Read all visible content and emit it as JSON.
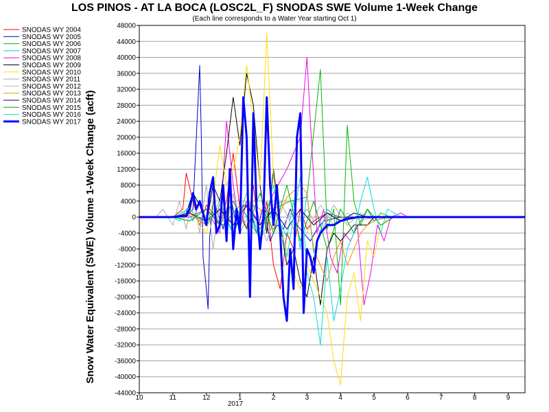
{
  "chart_data": {
    "type": "line",
    "title": "LOS PINOS - AT LA BOCA (LOSC2L_F) SNODAS SWE Volume 1-Week Change",
    "subtitle": "(Each line corresponds to a Water Year starting Oct 1)",
    "ylabel": "Snow Water Equivalent (SWE) Volume 1-Week Change (acft)",
    "xlabel": "",
    "ylim": [
      -44000,
      48000
    ],
    "yticks": [
      48000,
      44000,
      40000,
      36000,
      32000,
      28000,
      24000,
      20000,
      16000,
      12000,
      8000,
      4000,
      0,
      -4000,
      -8000,
      -12000,
      -16000,
      -20000,
      -24000,
      -28000,
      -32000,
      -36000,
      -40000,
      -44000
    ],
    "ytick_labels": [
      "48000",
      "44000",
      "40000",
      "36000",
      "32000",
      "28000",
      "24000",
      "20000",
      "16000",
      "12000",
      "8000",
      "4000",
      "0",
      "-4000",
      "-8000",
      "-12000",
      "-16000",
      "-20000",
      "-24000",
      "-28000",
      "-32000",
      "-36000",
      "-40000",
      "-44000"
    ],
    "xlim": [
      0,
      11.5
    ],
    "xticks": [
      0,
      1,
      2,
      3,
      4,
      5,
      6,
      7,
      8,
      9,
      10,
      11
    ],
    "xtick_labels": [
      "10",
      "11",
      "12",
      "1",
      "2",
      "3",
      "4",
      "5",
      "6",
      "7",
      "8",
      "9"
    ],
    "x_year_label": "2017",
    "x_units": "months since Oct 1",
    "grid": true,
    "legend_position": "top-left outside",
    "series": [
      {
        "name": "SNODAS WY 2004",
        "color": "#ff0000",
        "width": 1,
        "x": [
          0,
          1.0,
          1.3,
          1.4,
          1.6,
          1.8,
          2.0,
          2.2,
          2.4,
          2.6,
          2.8,
          3.0,
          3.2,
          3.4,
          3.6,
          3.8,
          4.0,
          4.2,
          4.4,
          4.6,
          4.8,
          5.0,
          5.2,
          5.6,
          6.0,
          6.4,
          7.0,
          8.0,
          9.0,
          11.5
        ],
        "y": [
          0,
          0,
          2000,
          11000,
          4000,
          -2000,
          3000,
          1000,
          -2000,
          4000,
          16000,
          2000,
          -3000,
          8000,
          -6000,
          4000,
          -12000,
          -18000,
          -4000,
          -8000,
          2000,
          -3000,
          -1000,
          1000,
          0,
          0,
          0,
          0,
          0,
          0
        ]
      },
      {
        "name": "SNODAS WY 2005",
        "color": "#0000cc",
        "width": 1,
        "x": [
          0,
          1.4,
          1.6,
          1.8,
          1.85,
          1.9,
          2.0,
          2.05,
          2.1,
          2.2,
          2.3,
          2.5,
          2.7,
          2.9,
          3.1,
          3.3,
          3.5,
          3.7,
          3.9,
          4.1,
          4.3,
          4.5,
          4.7,
          4.9,
          5.1,
          5.3,
          5.5,
          6.0,
          6.4,
          7.0,
          9.0,
          11.5
        ],
        "y": [
          0,
          0,
          2000,
          38000,
          20000,
          -10000,
          -18000,
          -23000,
          -5000,
          4000,
          2000,
          -3000,
          6000,
          -2000,
          3000,
          2000,
          -4000,
          3000,
          -6000,
          -2000,
          -3000,
          2000,
          -2000,
          -4000,
          -6000,
          -3000,
          -1000,
          0,
          0,
          0,
          0,
          0
        ]
      },
      {
        "name": "SNODAS WY 2006",
        "color": "#00bb00",
        "width": 1,
        "x": [
          0,
          1.0,
          1.5,
          2.0,
          2.5,
          3.0,
          3.5,
          4.0,
          4.5,
          5.0,
          5.4,
          5.6,
          5.8,
          6.0,
          6.2,
          6.4,
          6.6,
          6.8,
          7.0,
          7.2,
          7.5,
          8.0,
          9.0,
          11.5
        ],
        "y": [
          0,
          0,
          -1000,
          2000,
          -2000,
          3000,
          -4000,
          2000,
          4000,
          5000,
          37000,
          -3000,
          2000,
          -22000,
          23000,
          4000,
          -2000,
          2000,
          -1000,
          1000,
          0,
          0,
          0,
          0
        ]
      },
      {
        "name": "SNODAS WY 2007",
        "color": "#00cccc",
        "width": 1,
        "x": [
          0,
          1.0,
          1.2,
          1.4,
          1.6,
          1.8,
          2.0,
          2.4,
          2.8,
          3.2,
          3.6,
          4.0,
          4.4,
          4.6,
          4.8,
          5.0,
          5.2,
          5.6,
          6.0,
          6.4,
          6.8,
          7.0,
          8.0,
          9.0,
          11.5
        ],
        "y": [
          0,
          0,
          -1000,
          2000,
          -1000,
          4000,
          -2000,
          2000,
          -4000,
          3000,
          -6000,
          2000,
          -5000,
          4000,
          -8000,
          6000,
          -9000,
          2000,
          -1000,
          1000,
          0,
          0,
          0,
          0,
          0
        ]
      },
      {
        "name": "SNODAS WY 2008",
        "color": "#ee00ee",
        "width": 1,
        "x": [
          0,
          1.5,
          2.0,
          2.4,
          2.6,
          2.8,
          3.0,
          3.2,
          3.6,
          4.0,
          4.4,
          4.8,
          5.0,
          5.1,
          5.2,
          5.3,
          5.5,
          5.7,
          5.9,
          6.1,
          6.3,
          6.5,
          6.7,
          6.9,
          7.1,
          7.3,
          7.5,
          7.8,
          8.0,
          9.0,
          11.5
        ],
        "y": [
          0,
          0,
          2000,
          -4000,
          24000,
          8000,
          -3000,
          4000,
          -2000,
          6000,
          12000,
          20000,
          40000,
          24000,
          10000,
          -4000,
          2000,
          -10000,
          -14000,
          -4000,
          -6000,
          -2000,
          -22000,
          -14000,
          -2000,
          -6000,
          0,
          1000,
          0,
          0,
          0
        ]
      },
      {
        "name": "SNODAS WY 2009",
        "color": "#000000",
        "width": 1,
        "x": [
          0,
          1.0,
          1.4,
          1.6,
          1.8,
          2.0,
          2.2,
          2.4,
          2.6,
          2.8,
          3.0,
          3.2,
          3.4,
          3.6,
          3.8,
          4.0,
          4.2,
          4.4,
          4.6,
          4.8,
          5.0,
          5.2,
          5.4,
          5.6,
          5.8,
          6.0,
          6.4,
          6.8,
          7.0,
          8.0,
          9.0,
          11.5
        ],
        "y": [
          0,
          0,
          1000,
          6000,
          3000,
          -2000,
          8000,
          4000,
          16000,
          30000,
          18000,
          36000,
          28000,
          8000,
          -4000,
          12000,
          -2000,
          -12000,
          -8000,
          -16000,
          -20000,
          -10000,
          -22000,
          -8000,
          -4000,
          -6000,
          -2000,
          -2000,
          0,
          0,
          0,
          0
        ]
      },
      {
        "name": "SNODAS WY 2010",
        "color": "#ffdd00",
        "width": 1,
        "x": [
          0,
          1.0,
          1.5,
          2.0,
          2.2,
          2.4,
          2.6,
          2.8,
          3.0,
          3.2,
          3.4,
          3.6,
          3.8,
          4.0,
          4.2,
          4.4,
          4.6,
          4.8,
          5.0,
          5.2,
          5.4,
          5.6,
          5.8,
          6.0,
          6.2,
          6.4,
          6.6,
          6.8,
          7.0,
          7.2,
          7.5,
          8.0,
          9.0,
          11.5
        ],
        "y": [
          0,
          0,
          2000,
          -4000,
          4000,
          18000,
          8000,
          12000,
          20000,
          38000,
          24000,
          8000,
          46000,
          10000,
          -4000,
          -8000,
          -14000,
          -18000,
          -12000,
          -16000,
          -20000,
          -24000,
          -36000,
          -42000,
          -20000,
          -14000,
          -26000,
          -6000,
          -10000,
          -2000,
          0,
          0,
          0,
          0
        ]
      },
      {
        "name": "SNODAS WY 2011",
        "color": "#aaaaaa",
        "width": 1,
        "x": [
          0,
          0.5,
          0.7,
          1.0,
          1.2,
          1.4,
          1.6,
          1.8,
          2.0,
          2.2,
          2.4,
          2.6,
          2.8,
          3.0,
          3.4,
          3.8,
          4.2,
          4.6,
          5.0,
          5.4,
          5.8,
          6.2,
          6.6,
          7.0,
          7.4,
          8.0,
          9.0,
          11.5
        ],
        "y": [
          0,
          0,
          2000,
          -2000,
          4000,
          -3000,
          6000,
          -4000,
          8000,
          -8000,
          4000,
          -2000,
          6000,
          -4000,
          3000,
          -6000,
          4000,
          -3000,
          2000,
          -4000,
          3000,
          -2000,
          1000,
          -1000,
          0,
          0,
          0,
          0
        ]
      },
      {
        "name": "SNODAS WY 2012",
        "color": "#bbbbbb",
        "width": 1,
        "x": [
          0,
          1.0,
          1.4,
          1.8,
          2.2,
          2.6,
          3.0,
          3.4,
          3.8,
          4.2,
          4.6,
          5.0,
          5.4,
          5.8,
          6.2,
          6.6,
          7.0,
          8.0,
          9.0,
          11.5
        ],
        "y": [
          0,
          0,
          1000,
          -1000,
          2000,
          -2000,
          3000,
          -2000,
          4000,
          -3000,
          2000,
          -4000,
          3000,
          -2000,
          1000,
          -1000,
          0,
          0,
          0,
          0
        ]
      },
      {
        "name": "SNODAS WY 2013",
        "color": "#ff8800",
        "width": 1,
        "x": [
          0,
          1.0,
          1.5,
          2.0,
          2.4,
          2.8,
          3.2,
          3.6,
          4.0,
          4.4,
          4.8,
          5.0,
          5.2,
          5.4,
          5.6,
          5.8,
          6.0,
          6.2,
          6.4,
          6.6,
          6.8,
          7.0,
          7.4,
          8.0,
          9.0,
          11.5
        ],
        "y": [
          0,
          0,
          1000,
          -2000,
          3000,
          -2000,
          4000,
          2000,
          -3000,
          5000,
          8000,
          6000,
          -8000,
          -12000,
          -16000,
          -10000,
          -6000,
          -12000,
          -8000,
          -4000,
          -2000,
          -1000,
          0,
          0,
          0,
          0
        ]
      },
      {
        "name": "SNODAS WY 2014",
        "color": "#000066",
        "width": 1,
        "x": [
          0,
          1.0,
          1.5,
          2.0,
          2.4,
          2.8,
          3.2,
          3.6,
          4.0,
          4.4,
          4.8,
          5.2,
          5.6,
          6.0,
          6.4,
          6.8,
          7.2,
          7.6,
          8.0,
          9.0,
          11.5
        ],
        "y": [
          0,
          0,
          1000,
          -1000,
          2000,
          -2000,
          3000,
          -2000,
          2000,
          -3000,
          2000,
          -2000,
          1000,
          -1000,
          1000,
          0,
          0,
          0,
          0,
          0,
          0
        ]
      },
      {
        "name": "SNODAS WY 2015",
        "color": "#00aa00",
        "width": 1,
        "x": [
          0,
          1.0,
          1.5,
          2.0,
          2.4,
          2.8,
          3.2,
          3.6,
          4.0,
          4.4,
          4.8,
          5.2,
          5.6,
          6.0,
          6.4,
          6.8,
          7.2,
          7.6,
          8.0,
          9.0,
          11.5
        ],
        "y": [
          0,
          0,
          -1000,
          2000,
          -2000,
          4000,
          -3000,
          6000,
          -4000,
          8000,
          -6000,
          4000,
          -8000,
          2000,
          -4000,
          2000,
          -2000,
          0,
          0,
          0,
          0
        ]
      },
      {
        "name": "SNODAS WY 2016",
        "color": "#00dddd",
        "width": 1,
        "x": [
          0,
          1.0,
          1.5,
          2.0,
          2.4,
          2.8,
          3.2,
          3.6,
          4.0,
          4.4,
          4.8,
          5.0,
          5.2,
          5.4,
          5.6,
          5.8,
          6.0,
          6.2,
          6.4,
          6.6,
          6.8,
          7.0,
          7.2,
          7.4,
          7.6,
          7.8,
          8.0,
          9.0,
          11.5
        ],
        "y": [
          0,
          0,
          2000,
          -2000,
          4000,
          -4000,
          6000,
          -6000,
          8000,
          -10000,
          10000,
          -14000,
          -20000,
          -32000,
          -10000,
          -26000,
          -18000,
          -8000,
          -4000,
          4000,
          10000,
          2000,
          -4000,
          2000,
          1000,
          0,
          0,
          0,
          0
        ]
      },
      {
        "name": "SNODAS WY 2017",
        "color": "#0000ff",
        "width": 3,
        "x": [
          0,
          0.5,
          1.0,
          1.2,
          1.4,
          1.5,
          1.6,
          1.7,
          1.8,
          1.9,
          2.0,
          2.1,
          2.2,
          2.3,
          2.4,
          2.5,
          2.6,
          2.7,
          2.8,
          2.9,
          3.0,
          3.1,
          3.2,
          3.3,
          3.4,
          3.5,
          3.6,
          3.7,
          3.8,
          3.9,
          4.0,
          4.1,
          4.2,
          4.3,
          4.4,
          4.5,
          4.6,
          4.7,
          4.8,
          4.9,
          5.0,
          5.1,
          5.2,
          5.3,
          5.4,
          5.5,
          5.6,
          5.8,
          6.0,
          6.2,
          6.5,
          7.0,
          8.0,
          9.0,
          11.5
        ],
        "y": [
          0,
          0,
          0,
          200,
          300,
          2000,
          6000,
          2000,
          4000,
          1000,
          -2000,
          6000,
          10000,
          -4000,
          -2000,
          8000,
          -6000,
          12000,
          -8000,
          2000,
          -4000,
          30000,
          20000,
          -20000,
          26000,
          2000,
          -8000,
          0,
          30000,
          8000,
          -2000,
          8000,
          -4000,
          -20000,
          -26000,
          -8000,
          -18000,
          20000,
          26000,
          -24000,
          -8000,
          -10000,
          -14000,
          -6000,
          -4000,
          -3000,
          -2000,
          -2000,
          -1000,
          -500,
          0,
          0,
          0,
          0,
          0
        ]
      }
    ]
  }
}
